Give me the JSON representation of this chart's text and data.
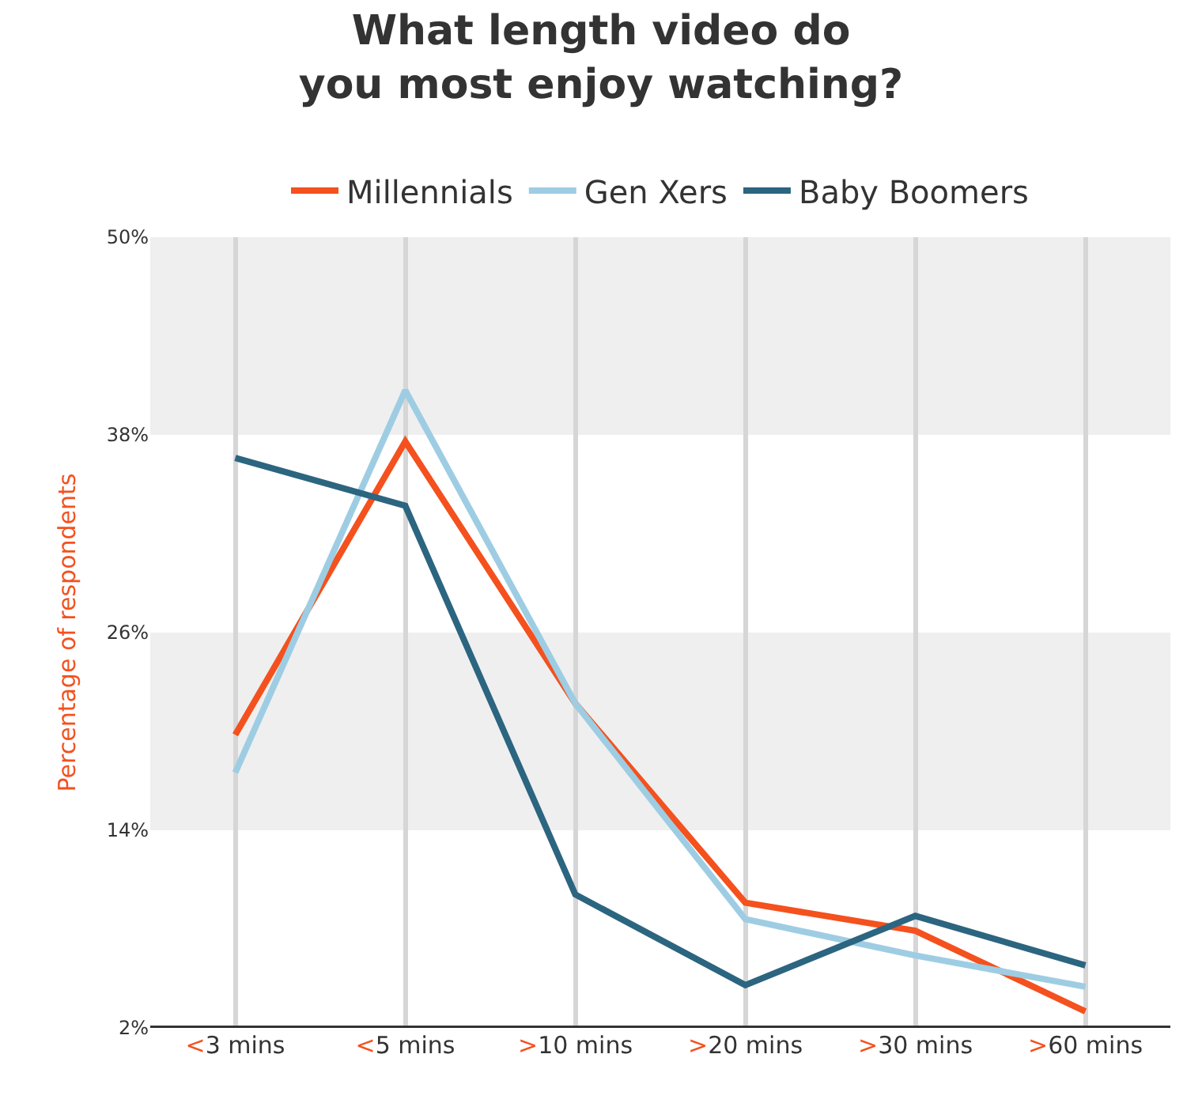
{
  "chart_data": {
    "type": "line",
    "title": "What length video do you most enjoy watching?",
    "ylabel": "Percentage of respondents",
    "categories": [
      "<3 mins",
      "<5 mins",
      ">10 mins",
      ">20 mins",
      ">30 mins",
      ">60 mins"
    ],
    "series": [
      {
        "name": "Millennials",
        "color": "#f4511e",
        "values": [
          19.8,
          37.6,
          21.7,
          9.6,
          7.9,
          3.0
        ]
      },
      {
        "name": "Gen Xers",
        "color": "#9ecde3",
        "values": [
          17.5,
          40.7,
          21.7,
          8.6,
          6.4,
          4.5
        ]
      },
      {
        "name": "Baby Boomers",
        "color": "#2c6580",
        "values": [
          36.6,
          33.7,
          10.1,
          4.6,
          8.8,
          5.8
        ]
      }
    ],
    "ylim": [
      2,
      50
    ],
    "yticks": [
      {
        "value": 2,
        "label": "2%"
      },
      {
        "value": 14,
        "label": "14%"
      },
      {
        "value": 26,
        "label": "26%"
      },
      {
        "value": 38,
        "label": "38%"
      },
      {
        "value": 50,
        "label": "50%"
      }
    ],
    "bands": [
      {
        "axis": "y",
        "from": 38,
        "to": 50,
        "color": "#efefef"
      },
      {
        "axis": "y",
        "from": 14,
        "to": 26,
        "color": "#efefef"
      }
    ],
    "grid": "x",
    "legend": "top",
    "marker": "none",
    "line_style": "solid"
  }
}
